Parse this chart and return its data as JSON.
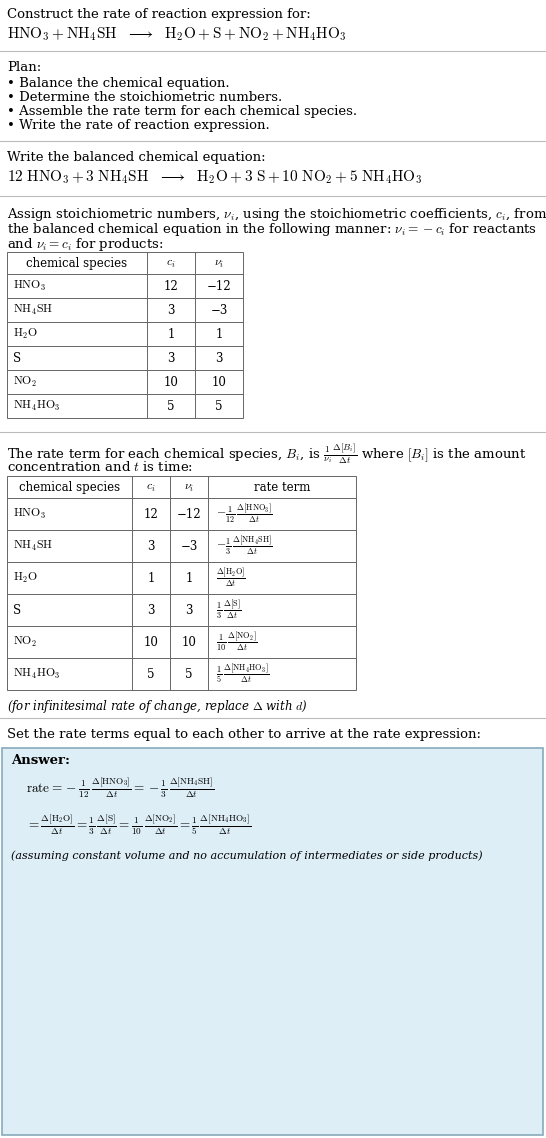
{
  "bg_color": "#ffffff",
  "answer_box_color": "#ddeef6",
  "answer_box_border": "#88aabb",
  "plan_items": [
    "• Balance the chemical equation.",
    "• Determine the stoichiometric numbers.",
    "• Assemble the rate term for each chemical species.",
    "• Write the rate of reaction expression."
  ],
  "table1_species": [
    "HNO_3",
    "NH_4SH",
    "H_2O",
    "S",
    "NO_2",
    "NH_4HO_3"
  ],
  "table1_ci": [
    "12",
    "3",
    "1",
    "3",
    "10",
    "5"
  ],
  "table1_vi": [
    "−12",
    "−3",
    "1",
    "3",
    "10",
    "5"
  ],
  "table2_ci": [
    "12",
    "3",
    "1",
    "3",
    "10",
    "5"
  ],
  "table2_vi": [
    "−12",
    "−3",
    "1",
    "3",
    "10",
    "5"
  ]
}
